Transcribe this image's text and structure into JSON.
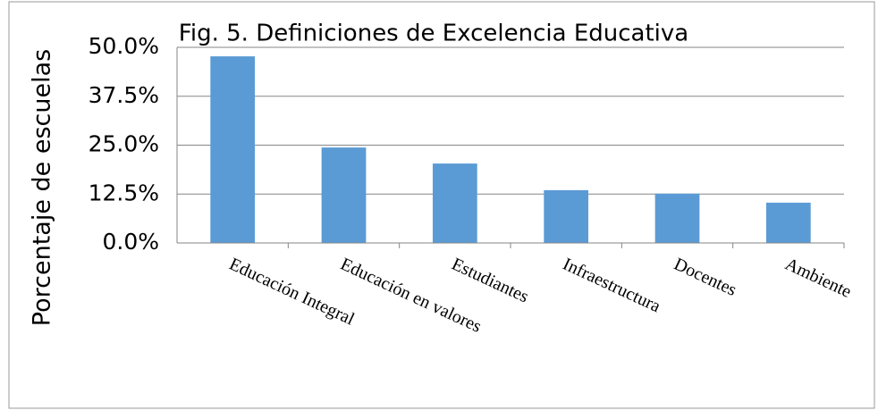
{
  "chart_data": {
    "type": "bar",
    "title": "Fig. 5. Definiciones de Excelencia Educativa",
    "y_label": "Porcentaje de escuelas",
    "categories": [
      "Educación Integral",
      "Educación en valores",
      "Estudiantes",
      "Infraestructura",
      "Docentes",
      "Ambiente"
    ],
    "values": [
      47.7,
      24.4,
      20.3,
      13.5,
      12.6,
      10.3
    ],
    "color": "#5b9bd5",
    "ylim": [
      0,
      50
    ],
    "yticks": [
      {
        "value": 0,
        "label": "0.0%"
      },
      {
        "value": 12.5,
        "label": "12.5%"
      },
      {
        "value": 25,
        "label": "25.0%"
      },
      {
        "value": 37.5,
        "label": "37.5%"
      },
      {
        "value": 50,
        "label": "50.0%"
      }
    ],
    "grid": true
  }
}
